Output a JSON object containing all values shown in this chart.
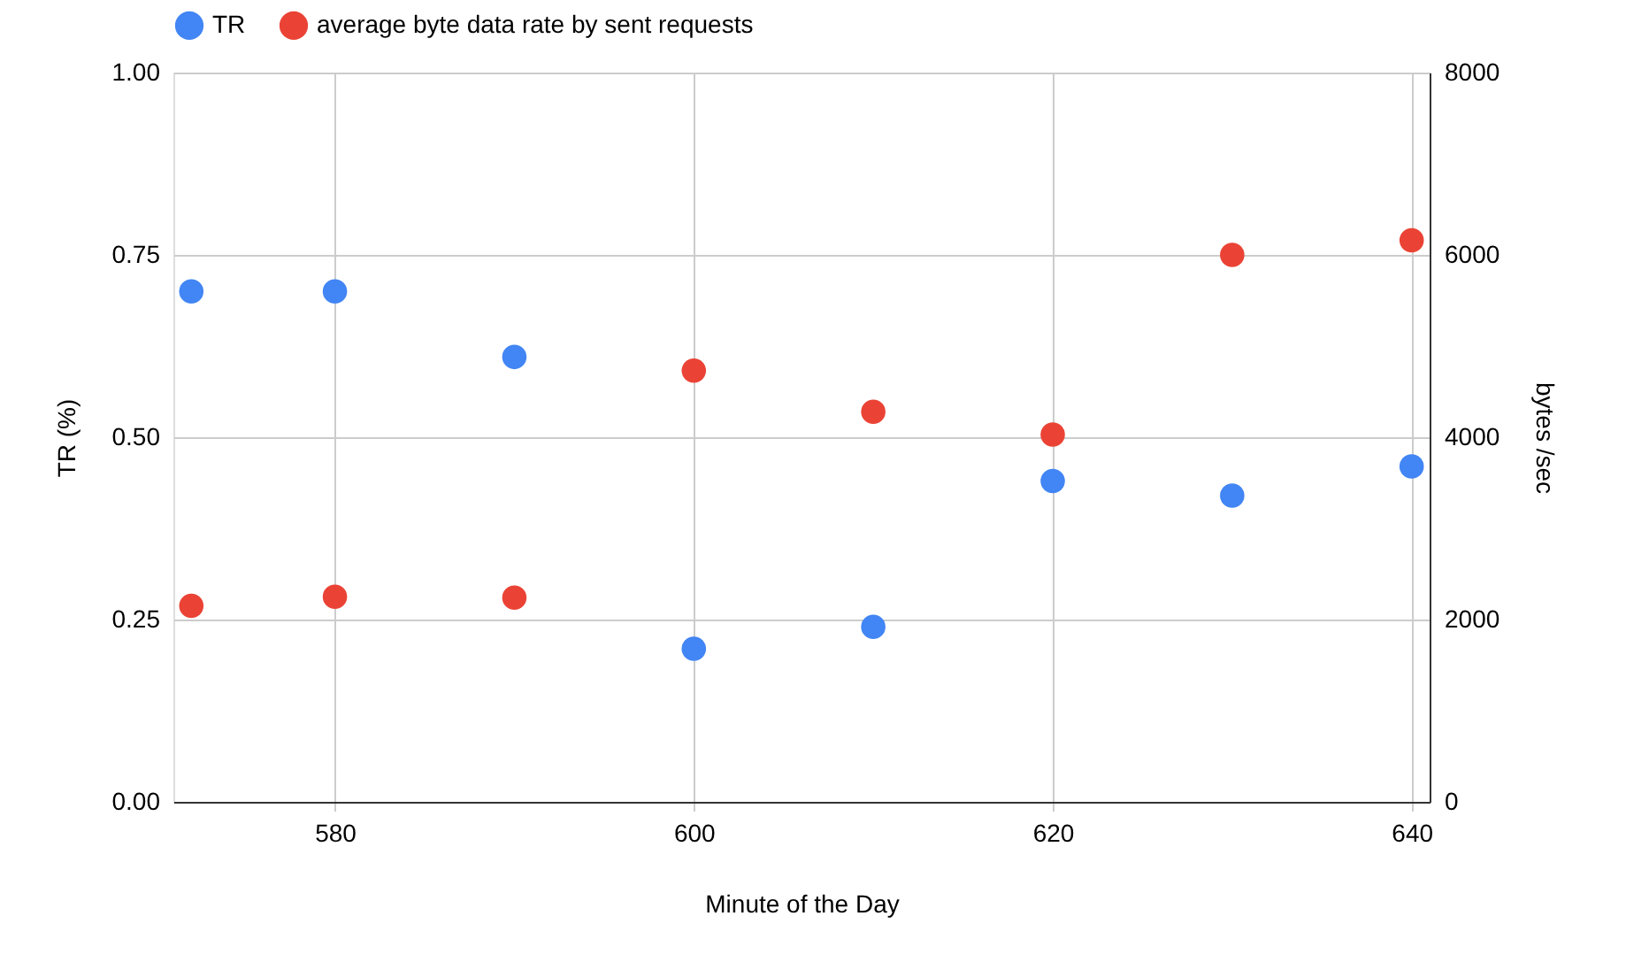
{
  "chart_data": {
    "type": "scatter",
    "xlabel": "Minute of the Day",
    "ylabel": "TR  (%)",
    "y2label": "bytes /sec",
    "x": [
      572,
      580,
      590,
      600,
      610,
      620,
      630,
      640
    ],
    "series": [
      {
        "name": "TR",
        "color": "#4285f4",
        "values": [
          0.7,
          0.7,
          0.61,
          0.21,
          0.24,
          0.44,
          0.42,
          0.46
        ]
      },
      {
        "name": "average byte data rate by sent requests",
        "color": "#ea4335",
        "axis": "y2",
        "values": [
          2150,
          2250,
          2240,
          4730,
          4280,
          4030,
          6000,
          6160
        ]
      }
    ],
    "xlim": [
      571,
      641
    ],
    "xticks": [
      580,
      600,
      620,
      640
    ],
    "ylim": [
      0,
      1
    ],
    "yticks": [
      {
        "value": 0,
        "label": "0.00"
      },
      {
        "value": 0.25,
        "label": "0.25"
      },
      {
        "value": 0.5,
        "label": "0.50"
      },
      {
        "value": 0.75,
        "label": "0.75"
      },
      {
        "value": 1,
        "label": "1.00"
      }
    ],
    "y2lim": [
      0,
      8000
    ],
    "y2ticks": [
      0,
      2000,
      4000,
      6000,
      8000
    ],
    "grid": true,
    "legend": "top",
    "marker": "circle"
  }
}
